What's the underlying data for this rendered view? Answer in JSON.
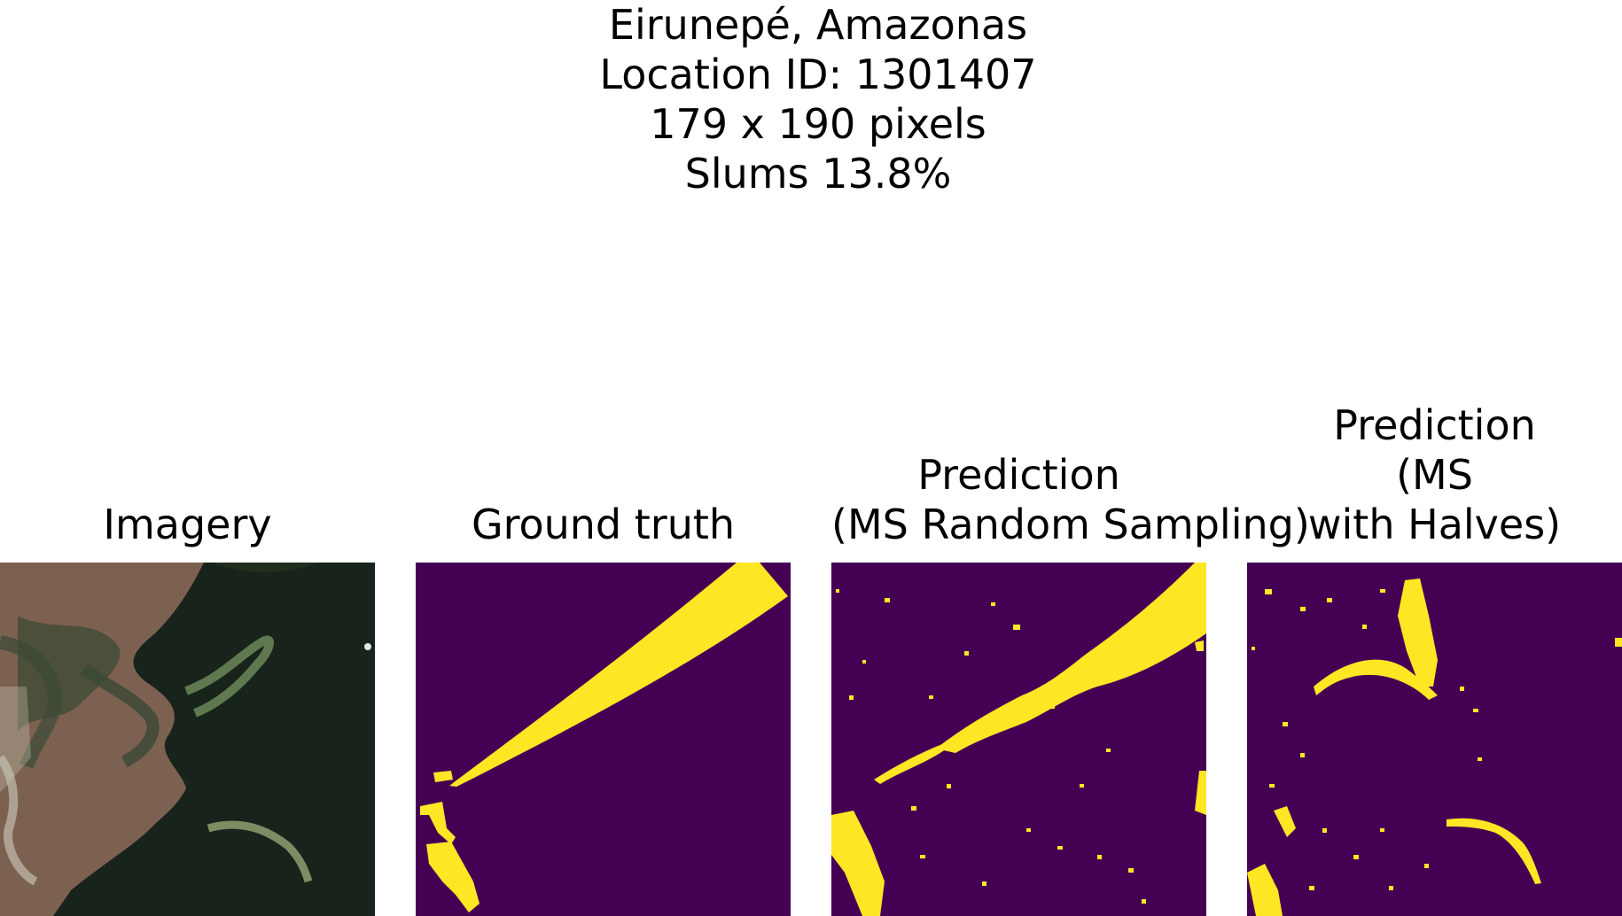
{
  "header": {
    "lines": [
      "Eirunepé, Amazonas",
      "Location ID: 1301407",
      "179 x 190 pixels",
      "Slums 13.8%"
    ]
  },
  "panels": [
    {
      "title_lines": [
        "Imagery"
      ]
    },
    {
      "title_lines": [
        "Ground truth"
      ]
    },
    {
      "title_lines": [
        "Prediction",
        "(MS Random Sampling)"
      ]
    },
    {
      "title_lines": [
        "Prediction",
        "(MS",
        "with Halves)"
      ]
    }
  ],
  "colors": {
    "mask_background": "#440154",
    "mask_foreground": "#fde725",
    "imagery_dark": "#18231b",
    "imagery_land": "#8a6a55"
  }
}
